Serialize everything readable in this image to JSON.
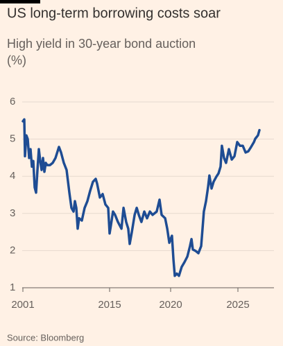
{
  "chart_data": {
    "type": "line",
    "title": "US long-term borrowing costs soar",
    "subtitle": [
      "High yield in 30-year bond auction",
      "(%)"
    ],
    "source": "Source: Bloomberg",
    "color": "#1e4c93",
    "grid": true,
    "x": [
      2001.0,
      2001.22,
      2001.34,
      2001.56,
      2001.78,
      2002.01,
      2002.23,
      2002.46,
      2002.68,
      2002.9,
      2003.13,
      2003.35,
      2003.58,
      2003.8,
      2004.02,
      2004.25,
      2004.47,
      2004.7,
      2004.92,
      2005.37,
      2005.82,
      2006.26,
      2006.82,
      2007.16,
      2007.61,
      2008.06,
      2008.5,
      2008.84,
      2009.18,
      2009.4,
      2009.62,
      2009.85,
      2010.07,
      2010.52,
      2010.97,
      2011.42,
      2011.86,
      2012.31,
      2012.76,
      2012.98,
      2013.43,
      2013.88,
      2014.33,
      2014.78,
      2015.0,
      2015.11,
      2015.28,
      2015.45,
      2015.68,
      2015.97,
      2016.14,
      2016.36,
      2016.53,
      2016.65,
      2016.82,
      2017.05,
      2017.22,
      2017.39,
      2017.61,
      2017.84,
      2018.07,
      2018.3,
      2018.52,
      2018.86,
      2019.09,
      2019.26,
      2019.55,
      2019.72,
      2019.89,
      2020.0,
      2020.1,
      2020.21,
      2020.31,
      2020.46,
      2020.62,
      2020.82,
      2021.03,
      2021.24,
      2021.44,
      2021.55,
      2021.65,
      2021.86,
      2022.06,
      2022.27,
      2022.37,
      2022.47,
      2022.63,
      2022.78,
      2022.88,
      2023.04,
      2023.19,
      2023.4,
      2023.56,
      2023.71,
      2023.81,
      2023.97,
      2024.12,
      2024.33,
      2024.54,
      2024.74,
      2024.95,
      2025.15,
      2025.36,
      2025.57,
      2025.77,
      2025.98,
      2026.19,
      2026.29,
      2026.49,
      2026.6
    ],
    "values": [
      5.48,
      5.53,
      4.54,
      5.1,
      5.0,
      4.49,
      4.73,
      4.26,
      4.41,
      3.7,
      3.56,
      4.17,
      4.73,
      4.41,
      4.17,
      4.49,
      4.12,
      4.36,
      4.3,
      4.3,
      4.36,
      4.49,
      4.79,
      4.64,
      4.36,
      4.17,
      3.56,
      3.15,
      3.05,
      3.33,
      3.15,
      2.59,
      2.87,
      2.81,
      3.15,
      3.33,
      3.61,
      3.85,
      3.93,
      3.8,
      3.43,
      3.52,
      3.24,
      3.15,
      2.46,
      2.68,
      3.05,
      2.96,
      2.77,
      2.59,
      3.15,
      2.77,
      2.59,
      2.18,
      2.49,
      2.96,
      3.15,
      2.96,
      2.77,
      3.05,
      2.87,
      3.05,
      2.96,
      3.05,
      3.37,
      2.96,
      2.87,
      2.59,
      2.21,
      2.31,
      2.4,
      1.75,
      1.32,
      1.38,
      1.32,
      1.56,
      1.69,
      1.84,
      2.12,
      2.31,
      2.03,
      1.99,
      1.93,
      2.12,
      2.59,
      3.05,
      3.33,
      3.7,
      4.02,
      3.67,
      3.85,
      3.99,
      4.08,
      4.26,
      4.82,
      4.49,
      4.36,
      4.73,
      4.45,
      4.54,
      4.92,
      4.82,
      4.82,
      4.64,
      4.67,
      4.79,
      4.92,
      5.01,
      5.1,
      5.24
    ],
    "xticks": [
      2001,
      2015,
      2020,
      2025
    ],
    "ylim": [
      1,
      6
    ],
    "yticks": [
      1,
      2,
      3,
      4,
      5,
      6
    ]
  }
}
